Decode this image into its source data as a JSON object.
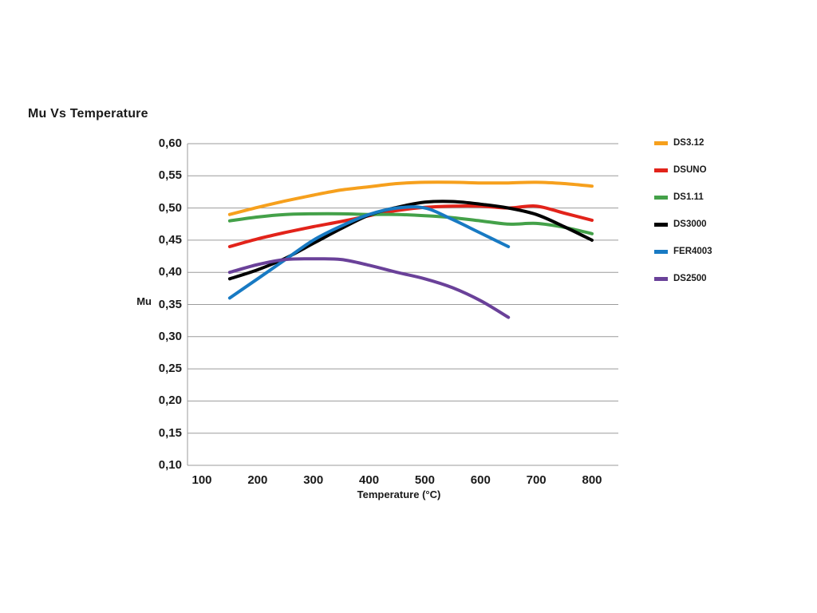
{
  "chart_data": {
    "type": "line",
    "title": "Mu Vs Temperature",
    "xlabel": "Temperature (°C)",
    "ylabel": "Mu",
    "xlim": [
      75,
      845
    ],
    "ylim": [
      0.1,
      0.6
    ],
    "x_ticks": [
      100,
      200,
      300,
      400,
      500,
      600,
      700,
      800
    ],
    "x_tick_labels": [
      "100",
      "200",
      "300",
      "400",
      "500",
      "600",
      "700",
      "800"
    ],
    "y_ticks": [
      0.1,
      0.15,
      0.2,
      0.25,
      0.3,
      0.35,
      0.4,
      0.45,
      0.5,
      0.55,
      0.6
    ],
    "y_tick_labels": [
      "0,10",
      "0,15",
      "0,20",
      "0,25",
      "0,30",
      "0,35",
      "0,40",
      "0,45",
      "0,50",
      "0,55",
      "0,60"
    ],
    "grid": "horizontal",
    "legend_position": "right",
    "grid_color": "#9b9b9b",
    "series": [
      {
        "name": "DS3.12",
        "color": "#F6A01D",
        "x": [
          150,
          200,
          250,
          300,
          350,
          400,
          450,
          500,
          550,
          600,
          650,
          700,
          750,
          800
        ],
        "y": [
          0.49,
          0.501,
          0.511,
          0.52,
          0.528,
          0.533,
          0.538,
          0.54,
          0.54,
          0.539,
          0.539,
          0.54,
          0.538,
          0.534
        ]
      },
      {
        "name": "DSUNO",
        "color": "#E2231A",
        "x": [
          150,
          200,
          250,
          300,
          350,
          400,
          450,
          500,
          550,
          600,
          650,
          700,
          750,
          800
        ],
        "y": [
          0.44,
          0.452,
          0.462,
          0.471,
          0.479,
          0.488,
          0.496,
          0.501,
          0.503,
          0.503,
          0.5,
          0.503,
          0.492,
          0.481
        ]
      },
      {
        "name": "DS1.11",
        "color": "#44A149",
        "x": [
          150,
          200,
          250,
          300,
          350,
          400,
          450,
          500,
          550,
          600,
          650,
          700,
          750,
          800
        ],
        "y": [
          0.48,
          0.486,
          0.49,
          0.491,
          0.491,
          0.49,
          0.49,
          0.488,
          0.485,
          0.48,
          0.475,
          0.476,
          0.47,
          0.46
        ]
      },
      {
        "name": "DS3000",
        "color": "#000000",
        "x": [
          150,
          200,
          250,
          300,
          350,
          400,
          450,
          500,
          550,
          600,
          650,
          700,
          750,
          800
        ],
        "y": [
          0.39,
          0.404,
          0.422,
          0.445,
          0.468,
          0.489,
          0.501,
          0.509,
          0.51,
          0.506,
          0.5,
          0.49,
          0.471,
          0.45
        ]
      },
      {
        "name": "FER4003",
        "color": "#187AC3",
        "x": [
          150,
          200,
          250,
          300,
          350,
          400,
          450,
          500,
          550,
          600,
          650
        ],
        "y": [
          0.36,
          0.39,
          0.42,
          0.45,
          0.472,
          0.49,
          0.5,
          0.5,
          0.482,
          0.461,
          0.44
        ]
      },
      {
        "name": "DS2500",
        "color": "#6A4199",
        "x": [
          150,
          200,
          250,
          300,
          350,
          400,
          450,
          500,
          550,
          600,
          650
        ],
        "y": [
          0.4,
          0.412,
          0.42,
          0.421,
          0.42,
          0.411,
          0.4,
          0.39,
          0.376,
          0.356,
          0.33
        ]
      }
    ]
  }
}
